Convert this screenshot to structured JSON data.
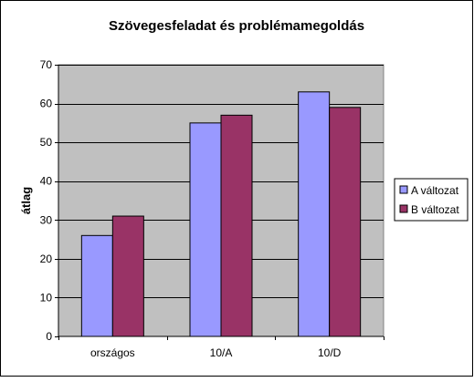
{
  "chart_data": {
    "type": "bar",
    "title": "Szövegesfeladat és problémamegoldás",
    "xlabel": "",
    "ylabel": "átlag",
    "categories": [
      "országos",
      "10/A",
      "10/D"
    ],
    "series": [
      {
        "name": "A változat",
        "values": [
          26,
          55,
          63
        ],
        "color": "#9999ff"
      },
      {
        "name": "B változat",
        "values": [
          31,
          57,
          59
        ],
        "color": "#993366"
      }
    ],
    "ylim": [
      0,
      70
    ],
    "yticks": [
      0,
      10,
      20,
      30,
      40,
      50,
      60,
      70
    ],
    "grid": true,
    "legend": "right",
    "plot_background": "#c0c0c0"
  }
}
